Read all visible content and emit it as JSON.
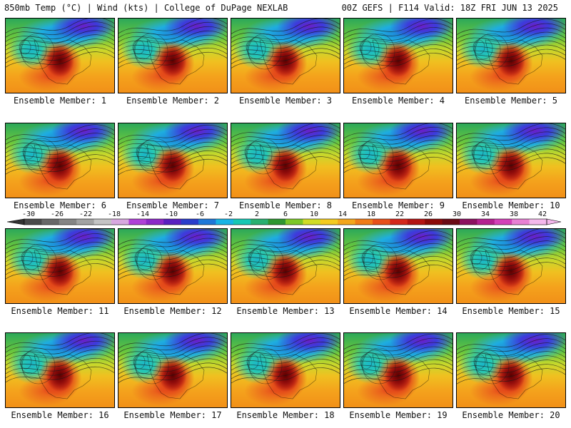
{
  "header": {
    "title_left": "850mb Temp (°C) | Wind (kts) | College of DuPage NEXLAB",
    "title_right": "00Z GEFS | F114 Valid: 18Z FRI JUN 13 2025"
  },
  "members": [
    "Ensemble Member: 1",
    "Ensemble Member: 2",
    "Ensemble Member: 3",
    "Ensemble Member: 4",
    "Ensemble Member: 5",
    "Ensemble Member: 6",
    "Ensemble Member: 7",
    "Ensemble Member: 8",
    "Ensemble Member: 9",
    "Ensemble Member: 10",
    "Ensemble Member: 11",
    "Ensemble Member: 12",
    "Ensemble Member: 13",
    "Ensemble Member: 14",
    "Ensemble Member: 15",
    "Ensemble Member: 16",
    "Ensemble Member: 17",
    "Ensemble Member: 18",
    "Ensemble Member: 19",
    "Ensemble Member: 20"
  ],
  "colorbar": {
    "tick_labels": [
      "-30",
      "-26",
      "-22",
      "-18",
      "-14",
      "-10",
      "-6",
      "-2",
      "2",
      "6",
      "10",
      "14",
      "18",
      "22",
      "26",
      "30",
      "34",
      "38",
      "42"
    ],
    "colors": [
      "#4a4a4a",
      "#686868",
      "#858585",
      "#a3a3a3",
      "#c4c4c4",
      "#d8a8e0",
      "#b040d8",
      "#8c28c8",
      "#5a20c0",
      "#2a3ccc",
      "#1e78d8",
      "#18b4e4",
      "#16c8b4",
      "#28b070",
      "#2e9630",
      "#7cc828",
      "#d0dc26",
      "#f4cc20",
      "#f4a61c",
      "#f07c18",
      "#e8501a",
      "#d4281c",
      "#b41414",
      "#8c0a0a",
      "#6a0a14",
      "#8c1060",
      "#b42090",
      "#d440b8",
      "#e880d4",
      "#f4b8ec"
    ]
  }
}
